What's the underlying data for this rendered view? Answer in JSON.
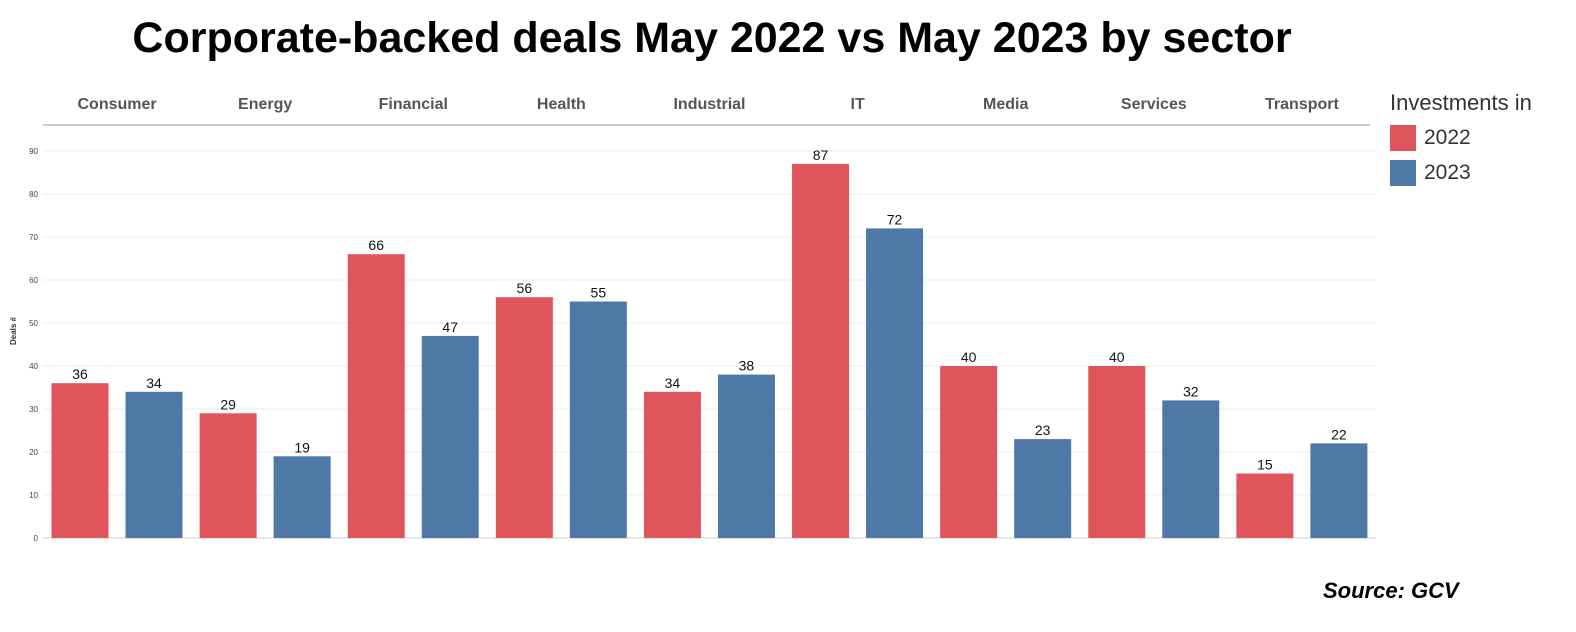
{
  "chart_data": {
    "type": "bar",
    "title": "Corporate-backed deals May 2022 vs May 2023 by sector",
    "xlabel": "",
    "ylabel": "Deals #",
    "ylim": [
      0,
      90
    ],
    "yticks": [
      0,
      10,
      20,
      30,
      40,
      50,
      60,
      70,
      80,
      90
    ],
    "grid": true,
    "legend_title": "Investments in",
    "legend_position": "right",
    "categories": [
      "Consumer",
      "Energy",
      "Financial",
      "Health",
      "Industrial",
      "IT",
      "Media",
      "Services",
      "Transport"
    ],
    "series": [
      {
        "name": "2022",
        "color": "#E0555B",
        "values": [
          36,
          29,
          66,
          56,
          34,
          87,
          40,
          40,
          15
        ]
      },
      {
        "name": "2023",
        "color": "#4E78A5",
        "values": [
          34,
          19,
          47,
          55,
          38,
          72,
          23,
          32,
          22
        ]
      }
    ],
    "source": "Source: GCV"
  }
}
